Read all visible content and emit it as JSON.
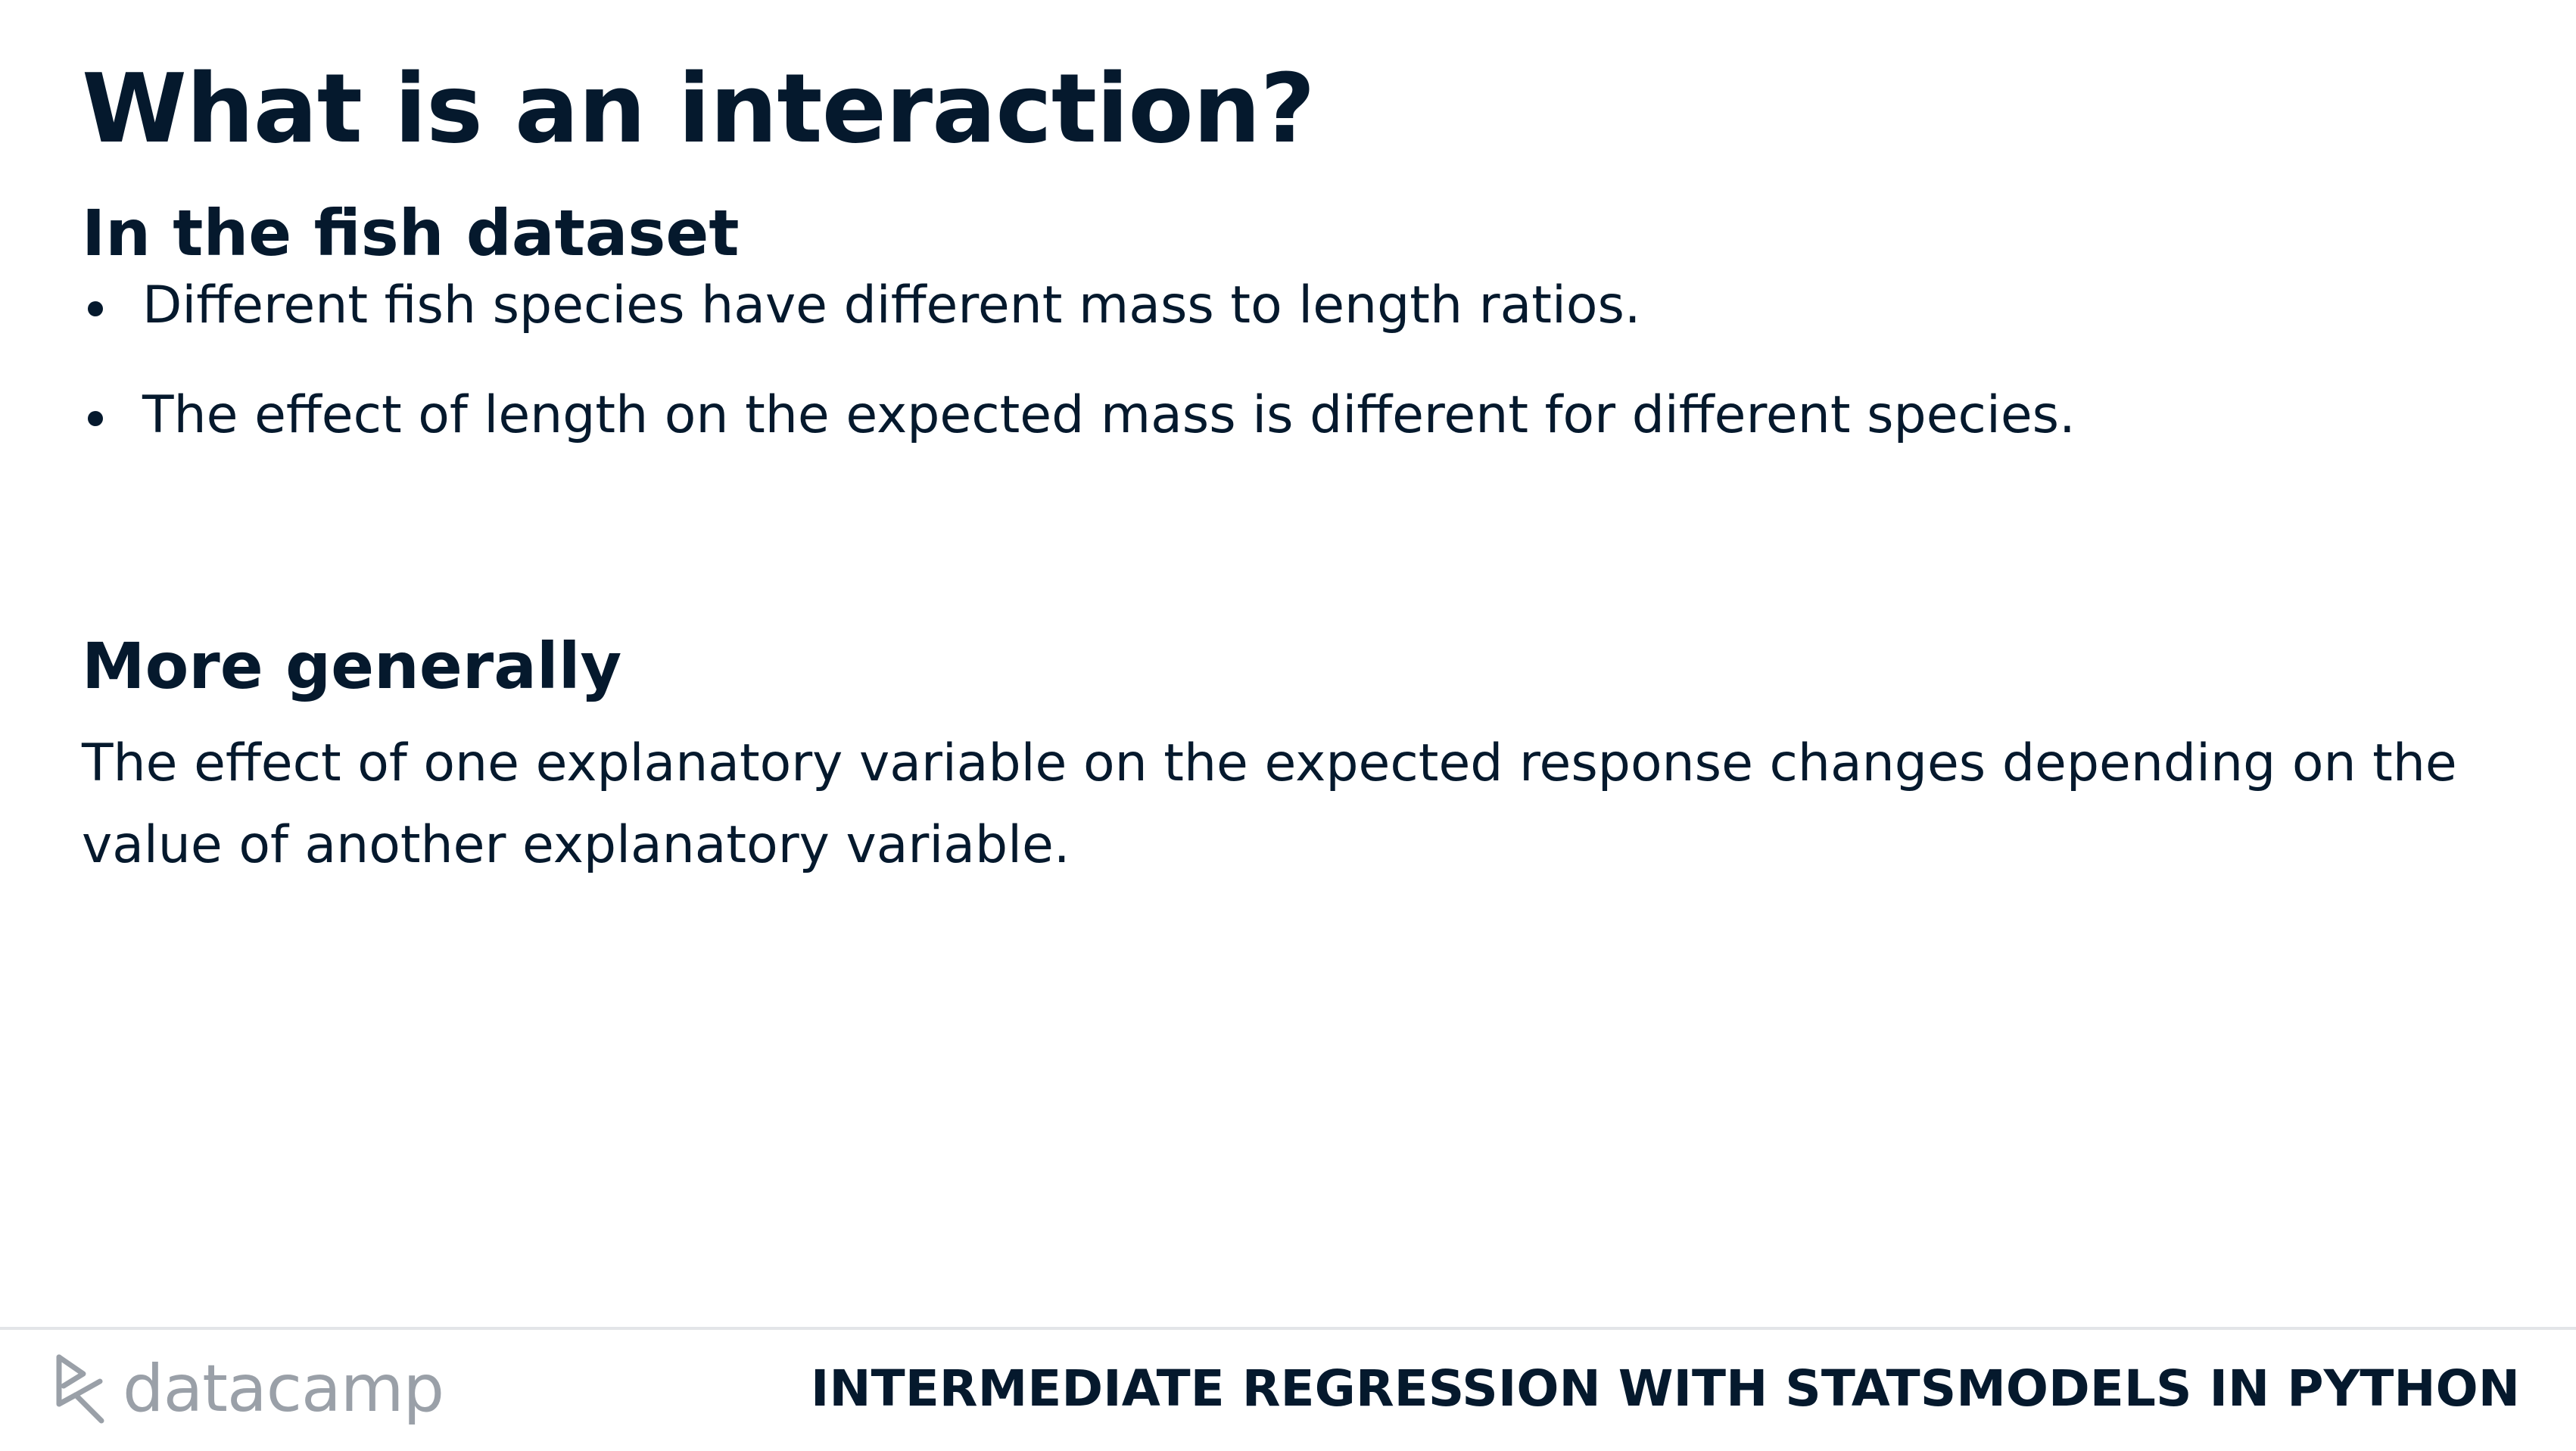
{
  "slide": {
    "title": "What is an interaction?"
  },
  "section_1": {
    "heading": "In the fish dataset",
    "bullets": [
      "Different fish species have different mass to length ratios.",
      "The effect of length on the expected mass is different for different species."
    ]
  },
  "section_2": {
    "heading": "More generally",
    "paragraph": "The effect of one explanatory variable on the expected response changes depending on the value of another explanatory variable."
  },
  "footer": {
    "logo_text": "datacamp",
    "course_title": "INTERMEDIATE REGRESSION WITH STATSMODELS IN PYTHON"
  },
  "colors": {
    "text": "#05192d",
    "logo_gray": "#9aa0a8",
    "divider": "#e3e5e8"
  },
  "icons": {
    "logo": "datacamp-logo-icon",
    "bullet": "bullet-dot-icon"
  }
}
